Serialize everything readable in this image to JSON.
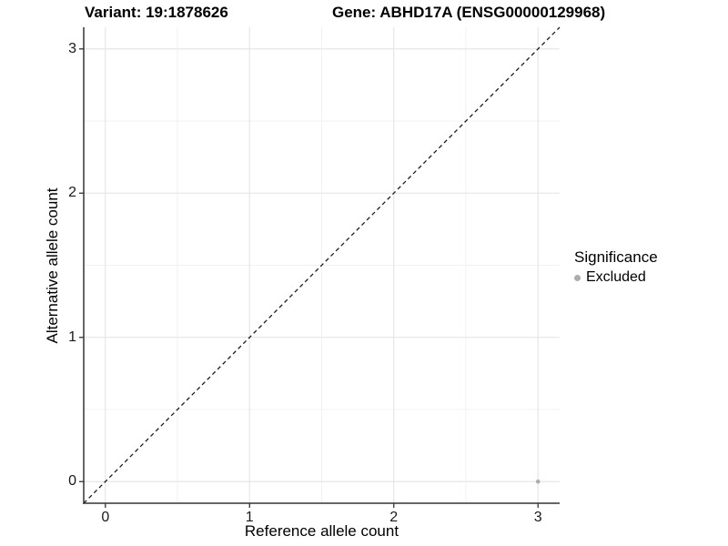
{
  "chart_data": {
    "type": "scatter",
    "title_left": "Variant: 19:1878626",
    "title_right": "Gene: ABHD17A (ENSG00000129968)",
    "xlabel": "Reference allele count",
    "ylabel": "Alternative allele count",
    "xlim": [
      -0.15,
      3.15
    ],
    "ylim": [
      -0.15,
      3.15
    ],
    "x_ticks": [
      0,
      1,
      2,
      3
    ],
    "y_ticks": [
      0,
      1,
      2,
      3
    ],
    "x_minor_ticks": [
      0.5,
      1.5,
      2.5
    ],
    "y_minor_ticks": [
      0.5,
      1.5,
      2.5
    ],
    "grid": true,
    "identity_line": {
      "style": "dashed",
      "slope": 1,
      "intercept": 0
    },
    "series": [
      {
        "name": "Excluded",
        "color": "#adadad",
        "points": [
          {
            "x": 3,
            "y": 0
          }
        ]
      }
    ],
    "legend": {
      "title": "Significance",
      "position": "right",
      "entries": [
        {
          "label": "Excluded",
          "color": "#adadad"
        }
      ]
    },
    "colors": {
      "major_grid": "#e4e4e4",
      "minor_grid": "#f1f1f1",
      "axis": "#333333",
      "dashed_line": "#1a1a1a",
      "background": "#ffffff"
    }
  }
}
